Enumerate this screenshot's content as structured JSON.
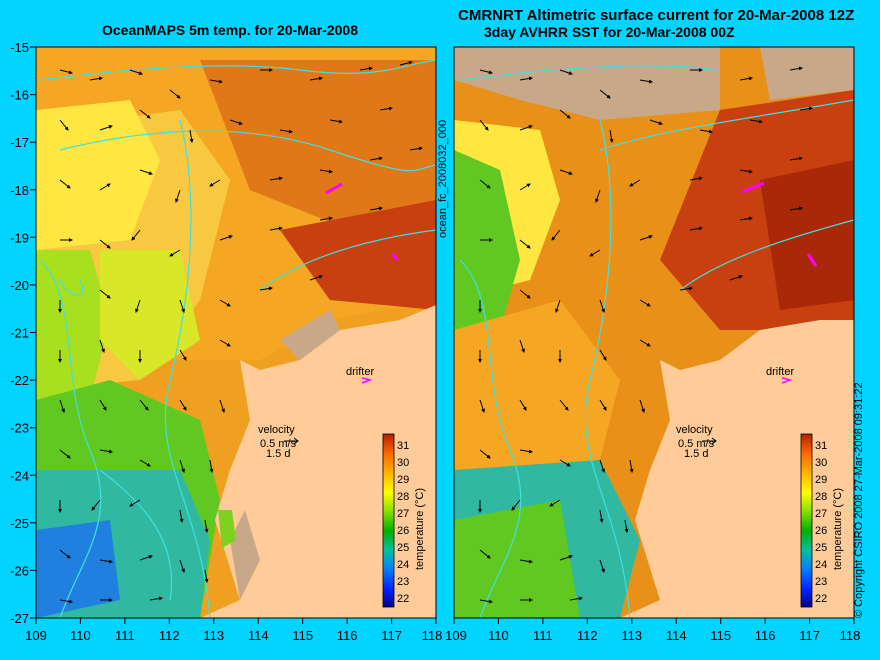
{
  "titles": {
    "left": "OceanMAPS 5m temp. for 20-Mar-2008",
    "right_line1": "CMRNRT Altimetric surface current for 20-Mar-2008 12Z",
    "right_line2": "3day AVHRR SST for 20-Mar-2008 00Z"
  },
  "forecast_id": "ocean_fc_2008032_000",
  "copyright": "© Copyright CSIRO 2008    27-Mar-2008 09:31:22",
  "axes": {
    "y_labels": [
      "-15",
      "-16",
      "-17",
      "-18",
      "-19",
      "-20",
      "-21",
      "-22",
      "-23",
      "-24",
      "-25",
      "-26",
      "-27"
    ],
    "x_labels": [
      "109",
      "110",
      "111",
      "112",
      "113",
      "114",
      "115",
      "116",
      "117",
      "118"
    ]
  },
  "map_labels": {
    "drifter": "drifter",
    "velocity": "velocity",
    "velocity_scale": "0.5 m/s",
    "duration": "1.5 d"
  },
  "colorbar": {
    "ticks": [
      "31",
      "30",
      "29",
      "28",
      "27",
      "26",
      "25",
      "24",
      "23",
      "22"
    ],
    "title": "temperature (°C)"
  },
  "colors": {
    "background": "#00d4ff",
    "land": "#ffcc99",
    "cloud": "#c8a888",
    "coast": "#40e0e0",
    "drifter": "#ff00ff"
  }
}
